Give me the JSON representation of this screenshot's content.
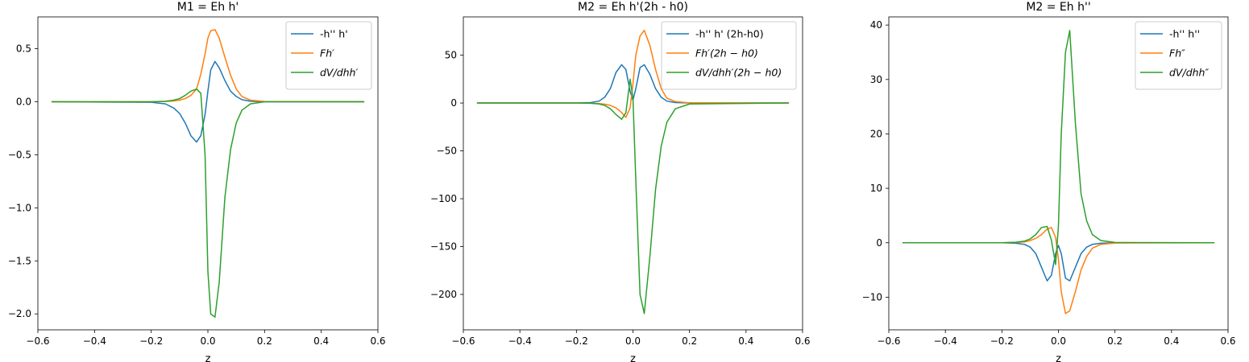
{
  "chart_data": [
    {
      "type": "line",
      "title": "M1 = Eh h'",
      "xlabel": "z",
      "ylabel": "",
      "xlim": [
        -0.6,
        0.6
      ],
      "ylim": [
        -2.15,
        0.8
      ],
      "xticks": [
        -0.6,
        -0.4,
        -0.2,
        0.0,
        0.2,
        0.4,
        0.6
      ],
      "xtick_labels": [
        "−0.6",
        "−0.4",
        "−0.2",
        "0.0",
        "0.2",
        "0.4",
        "0.6"
      ],
      "yticks": [
        -2.0,
        -1.5,
        -1.0,
        -0.5,
        0.0,
        0.5
      ],
      "ytick_labels": [
        "−2.0",
        "−1.5",
        "−1.0",
        "−0.5",
        "0.0",
        "0.5"
      ],
      "grid": false,
      "legend_position": "top-right",
      "x": [
        -0.55,
        -0.2,
        -0.15,
        -0.12,
        -0.1,
        -0.08,
        -0.06,
        -0.04,
        -0.025,
        -0.01,
        0.0,
        0.01,
        0.025,
        0.04,
        0.06,
        0.08,
        0.1,
        0.12,
        0.15,
        0.2,
        0.55
      ],
      "series": [
        {
          "name": "-h'' h'",
          "color": "#1f77b4",
          "values": [
            0.0,
            -0.005,
            -0.02,
            -0.06,
            -0.11,
            -0.2,
            -0.32,
            -0.38,
            -0.32,
            -0.12,
            0.1,
            0.3,
            0.38,
            0.32,
            0.2,
            0.1,
            0.05,
            0.02,
            0.005,
            0.0,
            0.0
          ]
        },
        {
          "name": "Fh′",
          "color": "#ff7f0e",
          "values": [
            0.0,
            0.0,
            0.003,
            0.008,
            0.015,
            0.03,
            0.06,
            0.12,
            0.26,
            0.45,
            0.6,
            0.67,
            0.68,
            0.6,
            0.42,
            0.25,
            0.12,
            0.05,
            0.015,
            0.003,
            0.0
          ]
        },
        {
          "name": "dV/dhh′",
          "color": "#2ca02c",
          "values": [
            0.0,
            0.0,
            0.005,
            0.015,
            0.03,
            0.06,
            0.1,
            0.12,
            0.08,
            -0.5,
            -1.6,
            -2.0,
            -2.03,
            -1.7,
            -0.9,
            -0.45,
            -0.2,
            -0.08,
            -0.02,
            0.0,
            0.0
          ]
        }
      ]
    },
    {
      "type": "line",
      "title": "M2 = Eh h'(2h - h0)",
      "xlabel": "z",
      "ylabel": "",
      "xlim": [
        -0.6,
        0.6
      ],
      "ylim": [
        -237,
        90
      ],
      "xticks": [
        -0.6,
        -0.4,
        -0.2,
        0.0,
        0.2,
        0.4,
        0.6
      ],
      "xtick_labels": [
        "−0.6",
        "−0.4",
        "−0.2",
        "0.0",
        "0.2",
        "0.4",
        "0.6"
      ],
      "yticks": [
        -200,
        -150,
        -100,
        -50,
        0,
        50
      ],
      "ytick_labels": [
        "−200",
        "−150",
        "−100",
        "−50",
        "0",
        "50"
      ],
      "grid": false,
      "legend_position": "top-right",
      "x": [
        -0.55,
        -0.2,
        -0.15,
        -0.12,
        -0.1,
        -0.08,
        -0.06,
        -0.04,
        -0.025,
        -0.01,
        0.0,
        0.01,
        0.025,
        0.04,
        0.06,
        0.08,
        0.1,
        0.12,
        0.15,
        0.2,
        0.55
      ],
      "series": [
        {
          "name": "-h'' h' (2h-h0)",
          "color": "#1f77b4",
          "values": [
            0.0,
            0.0,
            0.5,
            2.0,
            6.0,
            15.0,
            32.0,
            40.0,
            35.0,
            12.0,
            3.0,
            15.0,
            37.0,
            40.0,
            30.0,
            15.0,
            6.0,
            2.0,
            0.5,
            0.0,
            0.0
          ]
        },
        {
          "name": "Fh′(2h − h0)",
          "color": "#ff7f0e",
          "values": [
            0.0,
            0.0,
            -0.2,
            -0.6,
            -1.2,
            -2.5,
            -5.0,
            -10.0,
            -15.0,
            -5.0,
            20.0,
            50.0,
            70.0,
            76.0,
            60.0,
            35.0,
            15.0,
            5.0,
            1.5,
            0.2,
            0.0
          ]
        },
        {
          "name": "dV/dhh′(2h − h0)",
          "color": "#2ca02c",
          "values": [
            0.0,
            0.0,
            -0.3,
            -1.0,
            -2.5,
            -6.0,
            -12.0,
            -17.0,
            -10.0,
            25.0,
            5.0,
            -80.0,
            -200.0,
            -220.0,
            -160.0,
            -90.0,
            -45.0,
            -20.0,
            -6.0,
            -1.0,
            0.0
          ]
        }
      ]
    },
    {
      "type": "line",
      "title": "M2 = Eh h''",
      "xlabel": "z",
      "ylabel": "",
      "xlim": [
        -0.6,
        0.6
      ],
      "ylim": [
        -16,
        41.5
      ],
      "xticks": [
        -0.6,
        -0.4,
        -0.2,
        0.0,
        0.2,
        0.4,
        0.6
      ],
      "xtick_labels": [
        "−0.6",
        "−0.4",
        "−0.2",
        "0.0",
        "0.2",
        "0.4",
        "0.6"
      ],
      "yticks": [
        -10,
        0,
        10,
        20,
        30,
        40
      ],
      "ytick_labels": [
        "−10",
        "0",
        "10",
        "20",
        "30",
        "40"
      ],
      "grid": false,
      "legend_position": "top-right",
      "x": [
        -0.55,
        -0.2,
        -0.15,
        -0.12,
        -0.1,
        -0.08,
        -0.06,
        -0.04,
        -0.025,
        -0.01,
        0.0,
        0.01,
        0.025,
        0.04,
        0.06,
        0.08,
        0.1,
        0.12,
        0.15,
        0.2,
        0.55
      ],
      "series": [
        {
          "name": "-h'' h''",
          "color": "#1f77b4",
          "values": [
            0.0,
            0.0,
            -0.1,
            -0.3,
            -0.8,
            -2.0,
            -4.5,
            -7.0,
            -6.0,
            -2.0,
            -0.5,
            -2.0,
            -6.5,
            -7.0,
            -4.5,
            -2.0,
            -0.8,
            -0.3,
            -0.1,
            0.0,
            0.0
          ]
        },
        {
          "name": "Fh″",
          "color": "#ff7f0e",
          "values": [
            0.0,
            0.0,
            0.05,
            0.15,
            0.4,
            0.8,
            1.5,
            2.5,
            2.8,
            1.0,
            -3.0,
            -9.0,
            -13.0,
            -12.5,
            -9.0,
            -5.0,
            -2.5,
            -1.0,
            -0.3,
            -0.05,
            0.0
          ]
        },
        {
          "name": "dV/dhh″",
          "color": "#2ca02c",
          "values": [
            0.0,
            0.0,
            0.1,
            0.3,
            0.7,
            1.5,
            2.8,
            3.0,
            0.5,
            -4.0,
            3.0,
            20.0,
            35.0,
            39.0,
            22.0,
            9.0,
            4.0,
            1.5,
            0.4,
            0.05,
            0.0
          ]
        }
      ]
    }
  ]
}
